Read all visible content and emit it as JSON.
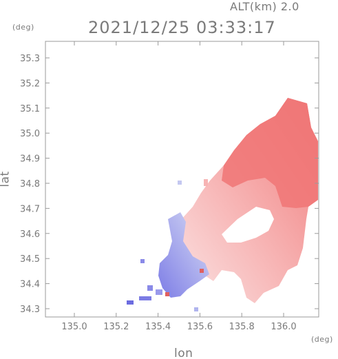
{
  "header": {
    "altitude_label": "ALT(km) 2.0",
    "timestamp": "2021/12/25 03:33:17"
  },
  "axes": {
    "lat_unit": "(deg)",
    "lon_unit": "(deg)",
    "lat_title": "lat",
    "lon_title": "lon",
    "lat_ticks": [
      "35.3",
      "35.2",
      "35.1",
      "35.0",
      "34.9",
      "34.8",
      "34.7",
      "34.6",
      "34.5",
      "34.4",
      "34.3"
    ],
    "lon_ticks": [
      "135.0",
      "135.2",
      "135.4",
      "135.6",
      "135.8",
      "136.0"
    ],
    "lat_range": [
      34.28,
      35.38
    ],
    "lon_range": [
      134.88,
      136.18
    ]
  },
  "colors": {
    "positive": "#f07a7a",
    "positive_light": "#f8c4c4",
    "negative": "#8a8ae8",
    "negative_light": "#c4c8f0",
    "axis": "#9a9a9a"
  }
}
